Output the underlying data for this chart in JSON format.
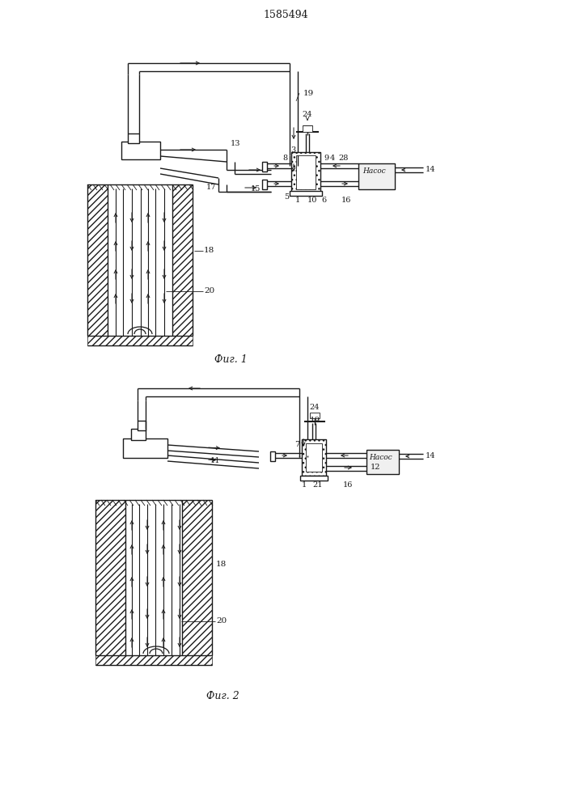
{
  "title": "1585494",
  "fig1_caption": "Фиг. 1",
  "fig2_caption": "Фиг. 2",
  "bg_color": "#ffffff",
  "lc": "#1a1a1a",
  "lw": 1.0,
  "tlw": 0.7
}
